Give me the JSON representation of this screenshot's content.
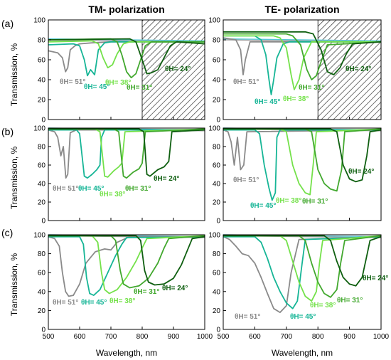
{
  "column_titles": [
    "TM- polarization",
    "TE- polarization"
  ],
  "row_labels": [
    "(a)",
    "(b)",
    "(c)"
  ],
  "ylabel": "Transmission, %",
  "xlabel": "Wavelength, nm",
  "colors": {
    "51": "#8a8a8a",
    "45": "#16b596",
    "38": "#74e14a",
    "31": "#42a82e",
    "24": "#0f5f10",
    "gray_flat": "#a0a0a0",
    "cyan_flat": "#58c7d6"
  },
  "chart_data": [
    {
      "type": "line",
      "row": "(a)",
      "column": "TM- polarization",
      "xlim": [
        500,
        1000
      ],
      "ylim": [
        0,
        100
      ],
      "hatched_region_from": 800,
      "series": [
        {
          "key": "51",
          "x": [
            500,
            530,
            545,
            555,
            562,
            570,
            585,
            600,
            640,
            700,
            1000
          ],
          "y": [
            69,
            67,
            62,
            48,
            52,
            70,
            74,
            76,
            77,
            78,
            78
          ]
        },
        {
          "key": "45",
          "x": [
            500,
            580,
            600,
            615,
            625,
            635,
            648,
            660,
            680,
            700,
            1000
          ],
          "y": [
            75,
            76,
            74,
            60,
            44,
            50,
            45,
            70,
            77,
            78,
            78
          ]
        },
        {
          "key": "38",
          "x": [
            500,
            640,
            660,
            675,
            690,
            705,
            720,
            740,
            760,
            1000
          ],
          "y": [
            78,
            79,
            76,
            62,
            52,
            55,
            66,
            76,
            78,
            78
          ]
        },
        {
          "key": "31",
          "x": [
            500,
            700,
            720,
            735,
            750,
            765,
            780,
            795,
            810,
            830,
            1000
          ],
          "y": [
            80,
            81,
            78,
            65,
            48,
            42,
            46,
            60,
            74,
            78,
            78
          ]
        },
        {
          "key": "24",
          "x": [
            500,
            760,
            780,
            800,
            815,
            830,
            850,
            870,
            890,
            910,
            1000
          ],
          "y": [
            80,
            81,
            78,
            60,
            46,
            47,
            50,
            62,
            74,
            78,
            76
          ]
        }
      ],
      "labels": [
        {
          "key": "51",
          "text": "θH= 51°"
        },
        {
          "key": "45",
          "text": "θH= 45°"
        },
        {
          "key": "38",
          "text": "θH= 38°"
        },
        {
          "key": "31",
          "text": "θH= 31°"
        },
        {
          "key": "24",
          "text": "θH= 24°"
        }
      ]
    },
    {
      "type": "line",
      "row": "(a)",
      "column": "TE- polarization",
      "xlim": [
        500,
        1000
      ],
      "ylim": [
        0,
        100
      ],
      "hatched_region_from": 800,
      "series": [
        {
          "key": "51",
          "x": [
            500,
            540,
            555,
            563,
            570,
            585,
            600,
            660,
            1000
          ],
          "y": [
            82,
            80,
            70,
            45,
            60,
            78,
            78,
            78,
            78
          ]
        },
        {
          "key": "45",
          "x": [
            500,
            600,
            620,
            635,
            645,
            652,
            660,
            670,
            690,
            710,
            1000
          ],
          "y": [
            84,
            84,
            80,
            65,
            40,
            25,
            40,
            62,
            76,
            78,
            78
          ]
        },
        {
          "key": "38",
          "x": [
            500,
            660,
            680,
            700,
            715,
            725,
            740,
            755,
            780,
            1000
          ],
          "y": [
            84,
            84,
            82,
            72,
            45,
            30,
            40,
            62,
            78,
            78
          ]
        },
        {
          "key": "31",
          "x": [
            500,
            700,
            720,
            745,
            765,
            780,
            795,
            810,
            830,
            1000
          ],
          "y": [
            86,
            86,
            84,
            75,
            50,
            40,
            44,
            58,
            75,
            78
          ]
        },
        {
          "key": "24",
          "x": [
            500,
            760,
            785,
            810,
            830,
            850,
            870,
            890,
            910,
            1000
          ],
          "y": [
            88,
            88,
            86,
            70,
            48,
            45,
            52,
            66,
            76,
            78
          ]
        }
      ],
      "labels": [
        {
          "key": "51",
          "text": "θH= 51°"
        },
        {
          "key": "45",
          "text": "θH= 45°"
        },
        {
          "key": "38",
          "text": "θH= 38°"
        },
        {
          "key": "31",
          "text": "θH= 31°"
        },
        {
          "key": "24",
          "text": "θH= 24°"
        }
      ]
    },
    {
      "type": "line",
      "row": "(b)",
      "column": "TM- polarization",
      "xlim": [
        500,
        1000
      ],
      "ylim": [
        0,
        100
      ],
      "series": [
        {
          "key": "51",
          "x": [
            500,
            520,
            530,
            540,
            548,
            556,
            562,
            570,
            590,
            1000
          ],
          "y": [
            98,
            96,
            90,
            70,
            80,
            46,
            50,
            95,
            98,
            98
          ]
        },
        {
          "key": "45",
          "x": [
            500,
            590,
            600,
            615,
            625,
            640,
            655,
            665,
            670,
            680,
            1000
          ],
          "y": [
            98,
            98,
            94,
            48,
            46,
            50,
            55,
            60,
            90,
            98,
            98
          ]
        },
        {
          "key": "38",
          "x": [
            500,
            650,
            665,
            680,
            690,
            710,
            725,
            735,
            745,
            1000
          ],
          "y": [
            99,
            99,
            96,
            48,
            47,
            54,
            58,
            62,
            96,
            99
          ]
        },
        {
          "key": "31",
          "x": [
            500,
            710,
            725,
            740,
            750,
            770,
            790,
            800,
            810,
            1000
          ],
          "y": [
            99,
            99,
            96,
            48,
            46,
            52,
            56,
            62,
            96,
            99
          ]
        },
        {
          "key": "24",
          "x": [
            500,
            790,
            805,
            815,
            825,
            850,
            870,
            885,
            895,
            1000
          ],
          "y": [
            99,
            99,
            96,
            50,
            48,
            55,
            58,
            64,
            96,
            98
          ]
        }
      ],
      "labels": [
        {
          "key": "51",
          "text": "θH= 51°"
        },
        {
          "key": "45",
          "text": "θH= 45°"
        },
        {
          "key": "38",
          "text": "θH= 38°"
        },
        {
          "key": "31",
          "text": "θH= 31°"
        },
        {
          "key": "24",
          "text": "θH= 24°"
        }
      ]
    },
    {
      "type": "line",
      "row": "(b)",
      "column": "TE- polarization",
      "xlim": [
        500,
        1000
      ],
      "ylim": [
        0,
        100
      ],
      "series": [
        {
          "key": "51",
          "x": [
            500,
            515,
            525,
            535,
            545,
            555,
            565,
            575,
            1000
          ],
          "y": [
            98,
            96,
            85,
            60,
            90,
            55,
            60,
            96,
            98
          ]
        },
        {
          "key": "45",
          "x": [
            500,
            600,
            615,
            630,
            645,
            655,
            665,
            670,
            680,
            1000
          ],
          "y": [
            98,
            98,
            94,
            60,
            35,
            22,
            30,
            90,
            98,
            98
          ]
        },
        {
          "key": "38",
          "x": [
            500,
            680,
            700,
            720,
            740,
            760,
            775,
            785,
            795,
            1000
          ],
          "y": [
            99,
            99,
            96,
            60,
            40,
            30,
            28,
            60,
            96,
            99
          ]
        },
        {
          "key": "31",
          "x": [
            500,
            760,
            780,
            800,
            820,
            840,
            860,
            875,
            885,
            1000
          ],
          "y": [
            99,
            99,
            96,
            55,
            40,
            34,
            32,
            55,
            96,
            99
          ]
        },
        {
          "key": "24",
          "x": [
            500,
            840,
            860,
            880,
            900,
            920,
            940,
            955,
            965,
            1000
          ],
          "y": [
            99,
            99,
            96,
            60,
            45,
            42,
            44,
            70,
            96,
            98
          ]
        }
      ],
      "labels": [
        {
          "key": "51",
          "text": "θH= 51°"
        },
        {
          "key": "45",
          "text": "θH= 45°"
        },
        {
          "key": "38",
          "text": "θH= 38°"
        },
        {
          "key": "31",
          "text": "θH= 31°"
        },
        {
          "key": "24",
          "text": "θH= 24°"
        }
      ]
    },
    {
      "type": "line",
      "row": "(c)",
      "column": "TM- polarization",
      "xlim": [
        500,
        1000
      ],
      "ylim": [
        0,
        100
      ],
      "series": [
        {
          "key": "51",
          "x": [
            500,
            520,
            535,
            545,
            555,
            565,
            580,
            600,
            620,
            650,
            680,
            700,
            720,
            760,
            1000
          ],
          "y": [
            98,
            96,
            88,
            60,
            40,
            35,
            36,
            48,
            70,
            82,
            85,
            84,
            92,
            98,
            98
          ]
        },
        {
          "key": "45",
          "x": [
            500,
            600,
            612,
            622,
            632,
            645,
            665,
            690,
            715,
            735,
            750,
            1000
          ],
          "y": [
            98,
            98,
            90,
            55,
            38,
            36,
            42,
            60,
            78,
            90,
            97,
            98
          ]
        },
        {
          "key": "38",
          "x": [
            500,
            640,
            658,
            670,
            680,
            695,
            720,
            750,
            780,
            800,
            815,
            1000
          ],
          "y": [
            99,
            99,
            92,
            60,
            42,
            38,
            42,
            55,
            72,
            86,
            96,
            99
          ]
        },
        {
          "key": "31",
          "x": [
            500,
            700,
            715,
            730,
            740,
            760,
            790,
            820,
            850,
            870,
            885,
            1000
          ],
          "y": [
            99,
            99,
            94,
            62,
            48,
            44,
            46,
            54,
            70,
            86,
            96,
            99
          ]
        },
        {
          "key": "24",
          "x": [
            500,
            780,
            795,
            808,
            820,
            840,
            870,
            900,
            925,
            945,
            960,
            1000
          ],
          "y": [
            99,
            99,
            94,
            62,
            50,
            47,
            48,
            54,
            68,
            84,
            96,
            98
          ]
        }
      ],
      "labels": [
        {
          "key": "51",
          "text": "θH= 51°"
        },
        {
          "key": "45",
          "text": "θH= 45°"
        },
        {
          "key": "38",
          "text": "θH= 38°"
        },
        {
          "key": "31",
          "text": "θH= 31°"
        },
        {
          "key": "24",
          "text": "θH= 24°"
        }
      ]
    },
    {
      "type": "line",
      "row": "(c)",
      "column": "TE- polarization",
      "xlim": [
        500,
        1000
      ],
      "ylim": [
        0,
        100
      ],
      "series": [
        {
          "key": "51",
          "x": [
            500,
            520,
            540,
            560,
            580,
            600,
            620,
            640,
            660,
            680,
            700,
            715,
            740,
            1000
          ],
          "y": [
            98,
            95,
            88,
            80,
            78,
            70,
            55,
            38,
            22,
            18,
            25,
            60,
            95,
            98
          ]
        },
        {
          "key": "45",
          "x": [
            500,
            600,
            620,
            640,
            660,
            680,
            700,
            720,
            735,
            750,
            760,
            1000
          ],
          "y": [
            98,
            98,
            92,
            75,
            55,
            40,
            28,
            22,
            30,
            70,
            95,
            98
          ]
        },
        {
          "key": "38",
          "x": [
            500,
            680,
            700,
            720,
            740,
            760,
            780,
            795,
            805,
            815,
            1000
          ],
          "y": [
            99,
            99,
            94,
            72,
            50,
            35,
            30,
            40,
            70,
            94,
            99
          ]
        },
        {
          "key": "31",
          "x": [
            500,
            740,
            760,
            780,
            800,
            820,
            840,
            860,
            872,
            885,
            1000
          ],
          "y": [
            99,
            99,
            94,
            70,
            50,
            38,
            34,
            42,
            70,
            94,
            99
          ]
        },
        {
          "key": "24",
          "x": [
            500,
            820,
            840,
            860,
            880,
            900,
            920,
            940,
            955,
            965,
            1000
          ],
          "y": [
            99,
            99,
            94,
            72,
            55,
            48,
            46,
            55,
            78,
            94,
            98
          ]
        }
      ],
      "labels": [
        {
          "key": "51",
          "text": "θH= 51°"
        },
        {
          "key": "45",
          "text": "θH= 45°"
        },
        {
          "key": "38",
          "text": "θH= 38°"
        },
        {
          "key": "31",
          "text": "θH= 31°"
        },
        {
          "key": "24",
          "text": "θH= 24°"
        }
      ]
    }
  ],
  "yticks": [
    0,
    20,
    40,
    60,
    80,
    100
  ],
  "xticks": [
    500,
    600,
    700,
    800,
    900,
    1000
  ]
}
